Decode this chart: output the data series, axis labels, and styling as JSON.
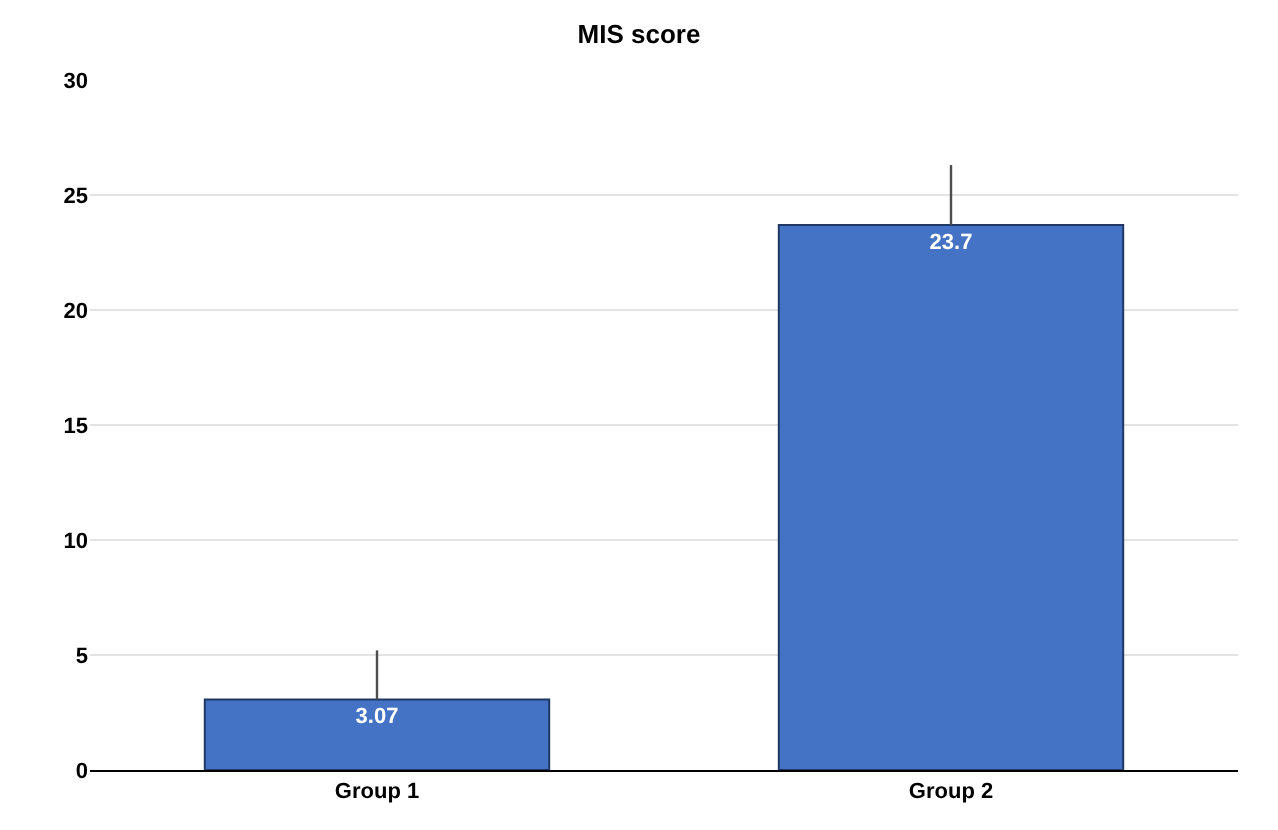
{
  "chart_data": {
    "type": "bar",
    "title": "MIS score",
    "categories": [
      "Group 1",
      "Group 2"
    ],
    "values": [
      3.07,
      23.7
    ],
    "errors": [
      [
        3.07,
        5.2
      ],
      [
        23.7,
        26.3
      ]
    ],
    "color": "#4472c4",
    "ylim": [
      0,
      30
    ],
    "yticks": [
      0,
      5,
      10,
      15,
      20,
      25,
      30
    ],
    "grid": "y",
    "data_labels": true
  }
}
